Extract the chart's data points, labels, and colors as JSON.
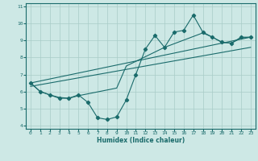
{
  "title": "",
  "xlabel": "Humidex (Indice chaleur)",
  "xlim": [
    -0.5,
    23.5
  ],
  "ylim": [
    3.8,
    11.2
  ],
  "yticks": [
    4,
    5,
    6,
    7,
    8,
    9,
    10,
    11
  ],
  "xticks": [
    0,
    1,
    2,
    3,
    4,
    5,
    6,
    7,
    8,
    9,
    10,
    11,
    12,
    13,
    14,
    15,
    16,
    17,
    18,
    19,
    20,
    21,
    22,
    23
  ],
  "bg_color": "#cde8e5",
  "line_color": "#1a6b6b",
  "line1_x": [
    0,
    1,
    2,
    3,
    4,
    5,
    6,
    7,
    8,
    9,
    10,
    11,
    12,
    13,
    14,
    15,
    16,
    17,
    18,
    19,
    20,
    21,
    22,
    23
  ],
  "line1_y": [
    6.5,
    6.0,
    5.8,
    5.6,
    5.6,
    5.8,
    5.35,
    4.45,
    4.35,
    4.5,
    5.5,
    7.0,
    8.5,
    9.3,
    8.6,
    9.5,
    9.6,
    10.5,
    9.5,
    9.2,
    8.9,
    8.85,
    9.2,
    9.2
  ],
  "line2_x": [
    0,
    1,
    2,
    3,
    4,
    5,
    9,
    10,
    14,
    18,
    19,
    20,
    21,
    22,
    23
  ],
  "line2_y": [
    6.5,
    6.0,
    5.8,
    5.65,
    5.6,
    5.75,
    6.2,
    7.5,
    8.6,
    9.45,
    9.2,
    8.9,
    8.85,
    9.15,
    9.2
  ],
  "line3_x": [
    0,
    23
  ],
  "line3_y": [
    6.3,
    8.6
  ],
  "line4_x": [
    0,
    23
  ],
  "line4_y": [
    6.5,
    9.2
  ]
}
